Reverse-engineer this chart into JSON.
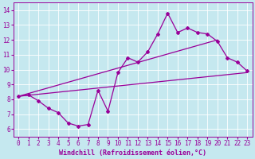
{
  "xlabel": "Windchill (Refroidissement éolien,°C)",
  "bg_color": "#c5e8ef",
  "line_color": "#990099",
  "grid_color": "#ffffff",
  "xlim": [
    -0.5,
    23.5
  ],
  "ylim": [
    5.5,
    14.5
  ],
  "xticks": [
    0,
    1,
    2,
    3,
    4,
    5,
    6,
    7,
    8,
    9,
    10,
    11,
    12,
    13,
    14,
    15,
    16,
    17,
    18,
    19,
    20,
    21,
    22,
    23
  ],
  "yticks": [
    6,
    7,
    8,
    9,
    10,
    11,
    12,
    13,
    14
  ],
  "data_x": [
    0,
    1,
    2,
    3,
    4,
    5,
    6,
    7,
    8,
    9,
    10,
    11,
    12,
    13,
    14,
    15,
    16,
    17,
    18,
    19,
    20,
    21,
    22,
    23
  ],
  "data_y": [
    8.2,
    8.3,
    7.9,
    7.4,
    7.1,
    6.4,
    6.2,
    6.3,
    8.6,
    7.2,
    9.8,
    10.8,
    10.5,
    11.2,
    12.4,
    13.8,
    12.5,
    12.8,
    12.5,
    12.4,
    11.9,
    10.8,
    10.5,
    9.9
  ],
  "trend1_start": 8.2,
  "trend1_end": 12.0,
  "trend2_start": 8.2,
  "trend2_end": 9.8,
  "tick_fontsize": 5.5,
  "xlabel_fontsize": 6.0,
  "lw": 0.9,
  "marker_size": 2.0
}
